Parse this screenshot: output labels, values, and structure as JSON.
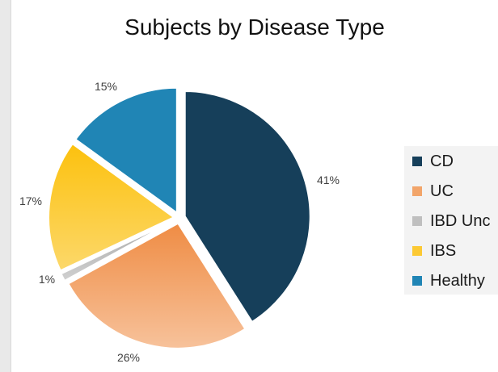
{
  "chart_data": {
    "type": "pie",
    "title": "Subjects by Disease Type",
    "categories": [
      "CD",
      "UC",
      "IBD Unc",
      "IBS",
      "Healthy"
    ],
    "values": [
      41,
      26,
      1,
      17,
      15
    ],
    "labels": [
      "41%",
      "26%",
      "1%",
      "17%",
      "15%"
    ],
    "colors": [
      "#163f5a",
      "#f2a56a",
      "#bfbfbf",
      "#fcc934",
      "#2085b5"
    ],
    "legend_position": "right",
    "exploded": true
  }
}
